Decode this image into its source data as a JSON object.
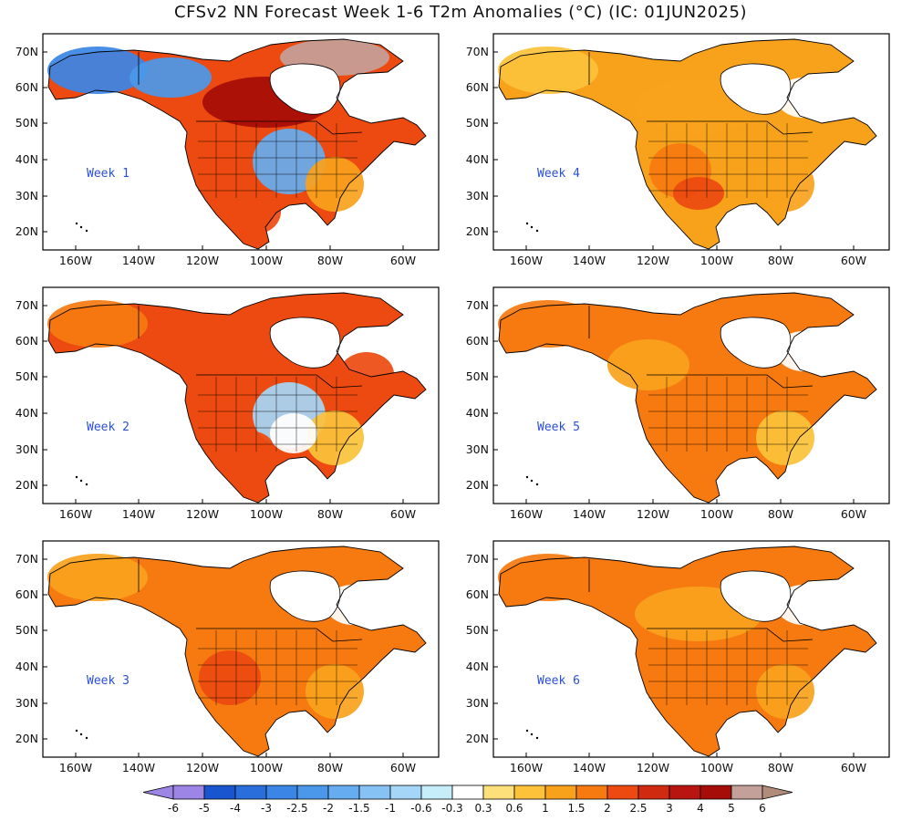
{
  "title": "CFSv2 NN Forecast Week 1-6 T2m Anomalies (°C) (IC: 01JUN2025)",
  "lat_ticks": [
    "70N",
    "60N",
    "50N",
    "40N",
    "30N",
    "20N"
  ],
  "lon_ticks": [
    "160W",
    "140W",
    "120W",
    "100W",
    "80W",
    "60W"
  ],
  "panels": [
    {
      "label": "Week 1",
      "col": 0,
      "row": 0,
      "anomalies": [
        {
          "region": "Alaska",
          "level": "-2.5"
        },
        {
          "region": "Yukon/Northwest Territories",
          "level": "-2"
        },
        {
          "region": "Northern Plains",
          "level": "-1.5"
        },
        {
          "region": "Hudson Bay / central Canada",
          "level": "4"
        },
        {
          "region": "Canadian Arctic islands",
          "level": "5"
        },
        {
          "region": "Pacific Northwest",
          "level": "2"
        },
        {
          "region": "Eastern US",
          "level": "1"
        },
        {
          "region": "Mexico",
          "level": "2"
        }
      ]
    },
    {
      "label": "Week 4",
      "col": 1,
      "row": 0,
      "anomalies": [
        {
          "region": "Alaska",
          "level": "0.6"
        },
        {
          "region": "Central Canada",
          "level": "1"
        },
        {
          "region": "Western US",
          "level": "1.5"
        },
        {
          "region": "Southwest US",
          "level": "2"
        },
        {
          "region": "Eastern US",
          "level": "1"
        },
        {
          "region": "Labrador",
          "level": "0"
        }
      ]
    },
    {
      "label": "Week 2",
      "col": 0,
      "row": 1,
      "anomalies": [
        {
          "region": "Alaska",
          "level": "1.5"
        },
        {
          "region": "Northern Plains",
          "level": "-0.6"
        },
        {
          "region": "Quebec",
          "level": "2"
        },
        {
          "region": "Southwest US",
          "level": "2"
        },
        {
          "region": "Eastern US",
          "level": "0.6"
        },
        {
          "region": "Central US",
          "level": "0"
        }
      ]
    },
    {
      "label": "Week 5",
      "col": 1,
      "row": 1,
      "anomalies": [
        {
          "region": "Alaska",
          "level": "1.5"
        },
        {
          "region": "Western Canada",
          "level": "1"
        },
        {
          "region": "Western US",
          "level": "1.5"
        },
        {
          "region": "Eastern US",
          "level": "0.6"
        },
        {
          "region": "Labrador",
          "level": "0"
        }
      ]
    },
    {
      "label": "Week 3",
      "col": 0,
      "row": 2,
      "anomalies": [
        {
          "region": "Alaska",
          "level": "1"
        },
        {
          "region": "Central Canada",
          "level": "1.5"
        },
        {
          "region": "Western US",
          "level": "2"
        },
        {
          "region": "Eastern US",
          "level": "1"
        },
        {
          "region": "Labrador",
          "level": "0"
        }
      ]
    },
    {
      "label": "Week 6",
      "col": 1,
      "row": 2,
      "anomalies": [
        {
          "region": "Alaska",
          "level": "1.5"
        },
        {
          "region": "Central Canada",
          "level": "1"
        },
        {
          "region": "Western US",
          "level": "1.5"
        },
        {
          "region": "Eastern US",
          "level": "1"
        },
        {
          "region": "Labrador",
          "level": "0"
        }
      ]
    }
  ],
  "colorbar": {
    "labels": [
      "-6",
      "-5",
      "-4",
      "-3",
      "-2.5",
      "-2",
      "-1.5",
      "-1",
      "-0.6",
      "-0.3",
      "0.3",
      "0.6",
      "1",
      "1.5",
      "2",
      "2.5",
      "3",
      "4",
      "5",
      "6"
    ],
    "colors": [
      "#9d85e6",
      "#1a55d0",
      "#2a6edc",
      "#3a85e6",
      "#4b98ea",
      "#66acf0",
      "#86c2f4",
      "#a6d6f7",
      "#c6eefa",
      "#ffffff",
      "#fde07a",
      "#fbc23a",
      "#f8a21c",
      "#f67a10",
      "#ec4a10",
      "#d02a10",
      "#b81410",
      "#a60c08",
      "#c4a09a"
    ],
    "low_arrow_color": "#9d85e6",
    "high_arrow_color": "#b28c7a"
  },
  "land_color": "#ffffff",
  "ocean_color": "#ffffff"
}
